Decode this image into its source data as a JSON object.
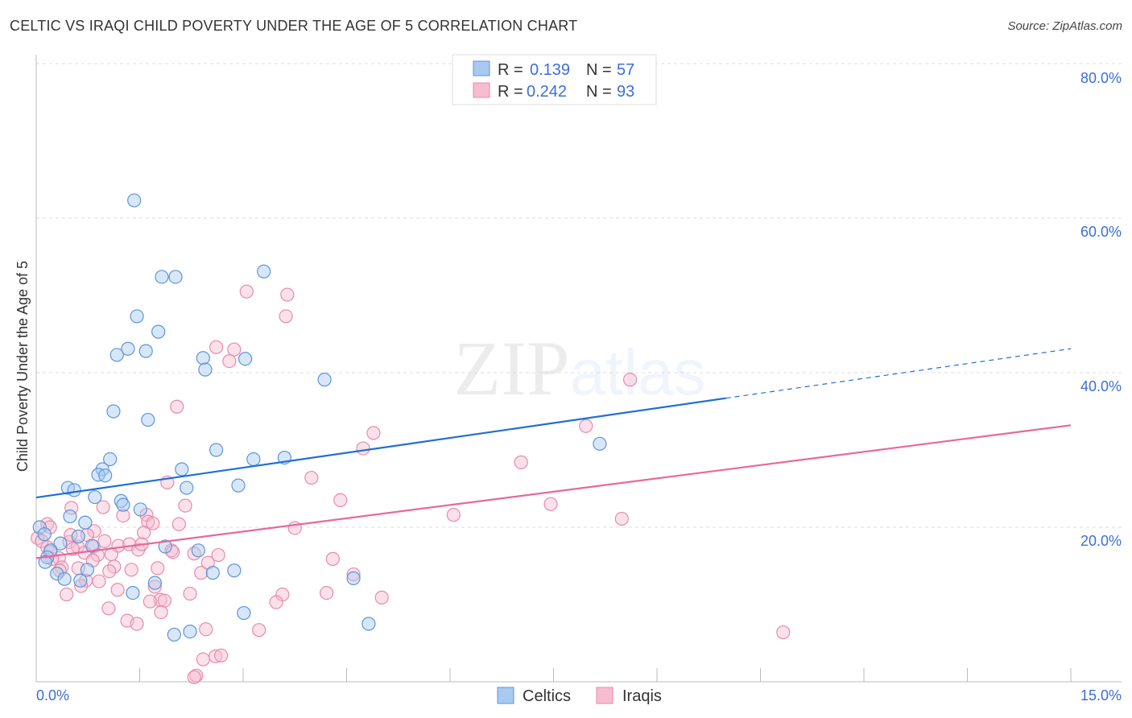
{
  "title": "CELTIC VS IRAQI CHILD POVERTY UNDER THE AGE OF 5 CORRELATION CHART",
  "source": "Source: ZipAtlas.com",
  "watermark": "ZIPatlas",
  "colors": {
    "celtics_fill": "#a9c9f0",
    "celtics_stroke": "#5b95db",
    "celtics_line": "#1f6fd6",
    "iraqis_fill": "#f7bcd0",
    "iraqis_stroke": "#e88aab",
    "iraqis_line": "#e8689a",
    "accent": "#3a6fd8"
  },
  "chart_data": {
    "type": "scatter",
    "title": "CELTIC VS IRAQI CHILD POVERTY UNDER THE AGE OF 5 CORRELATION CHART",
    "xlabel": "",
    "ylabel": "Child Poverty Under the Age of 5",
    "xlim": [
      0,
      15
    ],
    "ylim": [
      0,
      80
    ],
    "x_tick_labels": [
      "0.0%",
      "15.0%"
    ],
    "y_ticks": [
      20,
      40,
      60,
      80
    ],
    "y_tick_labels": [
      "20.0%",
      "40.0%",
      "60.0%",
      "80.0%"
    ],
    "grid": true,
    "legend_top": [
      {
        "r_label": "R = ",
        "r": "0.139",
        "n_label": "N = ",
        "n": "57"
      },
      {
        "r_label": "R = ",
        "r": "0.242",
        "n_label": "N = ",
        "n": "93"
      }
    ],
    "legend_bottom": [
      "Celtics",
      "Iraqis"
    ],
    "series": [
      {
        "name": "Celtics",
        "trend": {
          "x0": 0,
          "y0": 23.85,
          "x1": 10,
          "y1": 36.7,
          "dashed_to_x": 15,
          "dashed_to_y": 43.1
        },
        "points": [
          [
            1.42,
            62.3
          ],
          [
            3.3,
            53.1
          ],
          [
            1.82,
            52.4
          ],
          [
            2.02,
            52.4
          ],
          [
            1.46,
            47.3
          ],
          [
            1.77,
            45.3
          ],
          [
            1.33,
            43.1
          ],
          [
            1.59,
            42.8
          ],
          [
            1.17,
            42.3
          ],
          [
            2.42,
            41.9
          ],
          [
            2.45,
            40.4
          ],
          [
            3.03,
            41.8
          ],
          [
            4.18,
            39.1
          ],
          [
            1.12,
            35.0
          ],
          [
            1.62,
            33.9
          ],
          [
            8.17,
            30.8
          ],
          [
            2.61,
            30.0
          ],
          [
            1.07,
            28.8
          ],
          [
            3.15,
            28.8
          ],
          [
            3.6,
            29.0
          ],
          [
            0.96,
            27.5
          ],
          [
            2.11,
            27.5
          ],
          [
            0.9,
            26.8
          ],
          [
            1.0,
            26.7
          ],
          [
            0.46,
            25.1
          ],
          [
            0.55,
            24.8
          ],
          [
            2.18,
            25.1
          ],
          [
            2.93,
            25.4
          ],
          [
            0.85,
            23.9
          ],
          [
            1.23,
            23.4
          ],
          [
            1.26,
            22.9
          ],
          [
            1.51,
            22.3
          ],
          [
            0.49,
            21.4
          ],
          [
            0.71,
            20.6
          ],
          [
            0.05,
            20.0
          ],
          [
            0.12,
            19.1
          ],
          [
            0.61,
            18.8
          ],
          [
            0.35,
            17.9
          ],
          [
            0.81,
            17.6
          ],
          [
            1.87,
            17.5
          ],
          [
            2.35,
            17.0
          ],
          [
            0.21,
            17.0
          ],
          [
            0.16,
            16.1
          ],
          [
            0.13,
            15.5
          ],
          [
            0.3,
            14.0
          ],
          [
            0.74,
            14.5
          ],
          [
            2.56,
            14.1
          ],
          [
            2.87,
            14.4
          ],
          [
            0.41,
            13.3
          ],
          [
            0.64,
            13.1
          ],
          [
            4.6,
            13.4
          ],
          [
            1.72,
            12.8
          ],
          [
            1.4,
            11.5
          ],
          [
            3.01,
            8.9
          ],
          [
            4.82,
            7.5
          ],
          [
            2.23,
            6.5
          ],
          [
            2.0,
            6.1
          ]
        ]
      },
      {
        "name": "Iraqis",
        "trend": {
          "x0": 0,
          "y0": 16.0,
          "x1": 15,
          "y1": 33.2
        },
        "points": [
          [
            3.05,
            50.5
          ],
          [
            3.64,
            50.1
          ],
          [
            3.62,
            47.3
          ],
          [
            2.61,
            43.3
          ],
          [
            2.87,
            43.0
          ],
          [
            2.8,
            41.5
          ],
          [
            8.61,
            39.1
          ],
          [
            2.04,
            35.6
          ],
          [
            7.97,
            33.1
          ],
          [
            4.89,
            32.2
          ],
          [
            4.74,
            30.2
          ],
          [
            7.03,
            28.4
          ],
          [
            3.99,
            26.4
          ],
          [
            1.9,
            25.8
          ],
          [
            4.41,
            23.5
          ],
          [
            7.46,
            23.0
          ],
          [
            0.97,
            22.6
          ],
          [
            6.05,
            21.6
          ],
          [
            8.49,
            21.1
          ],
          [
            2.16,
            22.8
          ],
          [
            0.51,
            22.5
          ],
          [
            1.26,
            21.5
          ],
          [
            1.6,
            21.6
          ],
          [
            1.62,
            20.7
          ],
          [
            1.69,
            20.5
          ],
          [
            0.16,
            20.4
          ],
          [
            0.2,
            20.0
          ],
          [
            3.75,
            19.9
          ],
          [
            2.07,
            20.4
          ],
          [
            0.84,
            19.5
          ],
          [
            0.02,
            18.6
          ],
          [
            0.08,
            18.2
          ],
          [
            0.74,
            19.0
          ],
          [
            0.48,
            18.1
          ],
          [
            0.99,
            18.2
          ],
          [
            1.19,
            17.6
          ],
          [
            1.35,
            17.8
          ],
          [
            1.56,
            19.3
          ],
          [
            1.48,
            17.1
          ],
          [
            0.6,
            17.5
          ],
          [
            0.83,
            17.5
          ],
          [
            1.96,
            17.0
          ],
          [
            1.98,
            16.8
          ],
          [
            2.29,
            16.6
          ],
          [
            0.7,
            16.7
          ],
          [
            0.89,
            16.4
          ],
          [
            1.09,
            16.5
          ],
          [
            2.64,
            16.4
          ],
          [
            0.33,
            16.0
          ],
          [
            0.23,
            15.9
          ],
          [
            2.49,
            15.4
          ],
          [
            4.3,
            15.9
          ],
          [
            1.13,
            14.9
          ],
          [
            0.37,
            14.8
          ],
          [
            0.61,
            14.7
          ],
          [
            0.34,
            14.4
          ],
          [
            2.39,
            14.1
          ],
          [
            1.76,
            14.7
          ],
          [
            0.72,
            13.1
          ],
          [
            0.65,
            12.4
          ],
          [
            0.91,
            13.0
          ],
          [
            1.72,
            12.3
          ],
          [
            4.6,
            13.9
          ],
          [
            1.06,
            14.3
          ],
          [
            1.38,
            14.5
          ],
          [
            1.18,
            11.9
          ],
          [
            0.44,
            11.3
          ],
          [
            2.23,
            11.4
          ],
          [
            3.57,
            11.3
          ],
          [
            4.21,
            11.5
          ],
          [
            5.01,
            10.9
          ],
          [
            1.8,
            10.6
          ],
          [
            1.65,
            10.4
          ],
          [
            1.86,
            10.5
          ],
          [
            3.48,
            10.3
          ],
          [
            1.05,
            9.5
          ],
          [
            1.32,
            7.9
          ],
          [
            1.46,
            7.5
          ],
          [
            1.81,
            9.0
          ],
          [
            2.46,
            6.8
          ],
          [
            3.23,
            6.7
          ],
          [
            10.83,
            6.4
          ],
          [
            2.42,
            2.9
          ],
          [
            2.6,
            3.3
          ],
          [
            2.68,
            3.4
          ],
          [
            2.32,
            0.8
          ],
          [
            2.29,
            0.6
          ],
          [
            0.16,
            17.4
          ],
          [
            0.2,
            16.8
          ],
          [
            0.53,
            17.2
          ],
          [
            0.82,
            15.7
          ],
          [
            0.5,
            19.0
          ],
          [
            1.53,
            17.8
          ]
        ]
      }
    ]
  }
}
